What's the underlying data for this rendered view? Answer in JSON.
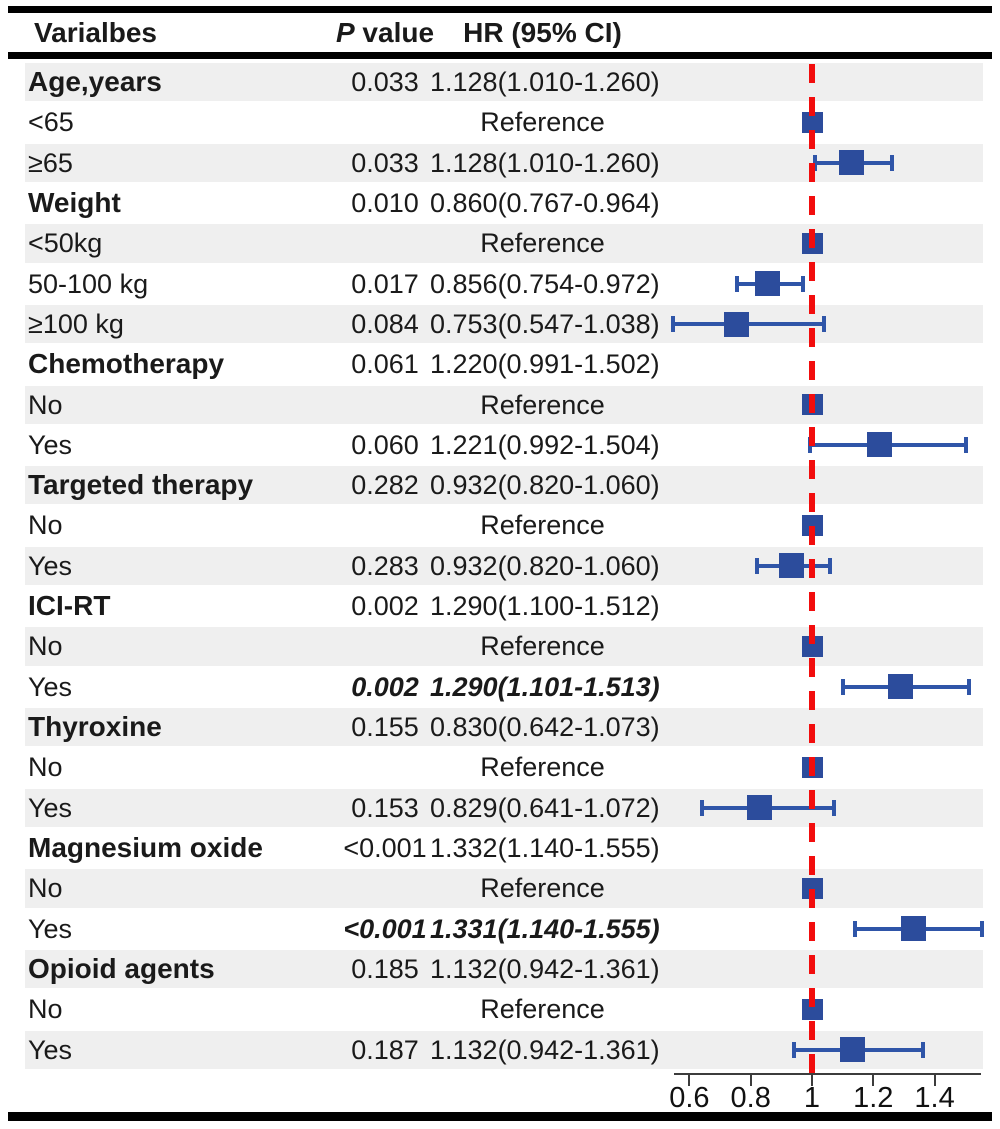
{
  "header": {
    "col_variables": "Varialbes",
    "col_p_italic": "P",
    "col_p_rest": " value",
    "col_hr": "HR (95% CI)"
  },
  "colors": {
    "marker": "#2c4c9c",
    "whisker": "#2f55a8",
    "ref_line_red": "#f20d0d",
    "stripe": "#efefef",
    "rule": "#000000"
  },
  "chart_data": {
    "type": "forest",
    "axis": {
      "ticks": [
        "0.6",
        "0.8",
        "1",
        "1.2",
        "1.4"
      ],
      "tick_values": [
        0.6,
        0.8,
        1.0,
        1.2,
        1.4
      ],
      "min": 0.55,
      "max": 1.55
    },
    "ref_line": 1.0,
    "rows": [
      {
        "label": "Age,years",
        "category": true,
        "p": "0.033",
        "hr": "1.128(1.010-1.260)",
        "emphasis": false,
        "marker": null
      },
      {
        "label": "<65",
        "category": false,
        "p": "",
        "hr": "Reference",
        "emphasis": false,
        "marker": {
          "ref": true
        }
      },
      {
        "label": "≥65",
        "category": false,
        "p": "0.033",
        "hr": "1.128(1.010-1.260)",
        "emphasis": false,
        "marker": {
          "est": 1.128,
          "lo": 1.01,
          "hi": 1.26
        }
      },
      {
        "label": "Weight",
        "category": true,
        "p": "0.010",
        "hr": "0.860(0.767-0.964)",
        "emphasis": false,
        "marker": null
      },
      {
        "label": "<50kg",
        "category": false,
        "p": "",
        "hr": "Reference",
        "emphasis": false,
        "marker": {
          "ref": true
        }
      },
      {
        "label": "50-100 kg",
        "category": false,
        "p": "0.017",
        "hr": "0.856(0.754-0.972)",
        "emphasis": false,
        "marker": {
          "est": 0.856,
          "lo": 0.754,
          "hi": 0.972
        }
      },
      {
        "label": "≥100 kg",
        "category": false,
        "p": "0.084",
        "hr": "0.753(0.547-1.038)",
        "emphasis": false,
        "marker": {
          "est": 0.753,
          "lo": 0.547,
          "hi": 1.038
        }
      },
      {
        "label": "Chemotherapy",
        "category": true,
        "p": "0.061",
        "hr": "1.220(0.991-1.502)",
        "emphasis": false,
        "marker": null
      },
      {
        "label": "No",
        "category": false,
        "p": "",
        "hr": "Reference",
        "emphasis": false,
        "marker": {
          "ref": true
        }
      },
      {
        "label": "Yes",
        "category": false,
        "p": "0.060",
        "hr": "1.221(0.992-1.504)",
        "emphasis": false,
        "marker": {
          "est": 1.221,
          "lo": 0.992,
          "hi": 1.504
        }
      },
      {
        "label": "Targeted therapy",
        "category": true,
        "p": "0.282",
        "hr": "0.932(0.820-1.060)",
        "emphasis": false,
        "marker": null
      },
      {
        "label": "No",
        "category": false,
        "p": "",
        "hr": "Reference",
        "emphasis": false,
        "marker": {
          "ref": true
        }
      },
      {
        "label": "Yes",
        "category": false,
        "p": "0.283",
        "hr": "0.932(0.820-1.060)",
        "emphasis": false,
        "marker": {
          "est": 0.932,
          "lo": 0.82,
          "hi": 1.06
        }
      },
      {
        "label": "ICI-RT",
        "category": true,
        "p": "0.002",
        "hr": "1.290(1.100-1.512)",
        "emphasis": false,
        "marker": null
      },
      {
        "label": "No",
        "category": false,
        "p": "",
        "hr": "Reference",
        "emphasis": false,
        "marker": {
          "ref": true
        }
      },
      {
        "label": "Yes",
        "category": false,
        "p": "0.002",
        "hr": "1.290(1.101-1.513)",
        "emphasis": true,
        "marker": {
          "est": 1.29,
          "lo": 1.101,
          "hi": 1.513
        }
      },
      {
        "label": "Thyroxine",
        "category": true,
        "p": "0.155",
        "hr": "0.830(0.642-1.073)",
        "emphasis": false,
        "marker": null
      },
      {
        "label": "No",
        "category": false,
        "p": "",
        "hr": "Reference",
        "emphasis": false,
        "marker": {
          "ref": true
        }
      },
      {
        "label": "Yes",
        "category": false,
        "p": "0.153",
        "hr": "0.829(0.641-1.072)",
        "emphasis": false,
        "marker": {
          "est": 0.829,
          "lo": 0.641,
          "hi": 1.072
        }
      },
      {
        "label": "Magnesium oxide",
        "category": true,
        "p": "<0.001",
        "hr": "1.332(1.140-1.555)",
        "emphasis": false,
        "marker": null
      },
      {
        "label": "No",
        "category": false,
        "p": "",
        "hr": "Reference",
        "emphasis": false,
        "marker": {
          "ref": true
        }
      },
      {
        "label": "Yes",
        "category": false,
        "p": "<0.001",
        "hr": "1.331(1.140-1.555)",
        "emphasis": true,
        "marker": {
          "est": 1.331,
          "lo": 1.14,
          "hi": 1.555
        }
      },
      {
        "label": "Opioid agents",
        "category": true,
        "p": "0.185",
        "hr": "1.132(0.942-1.361)",
        "emphasis": false,
        "marker": null
      },
      {
        "label": "No",
        "category": false,
        "p": "",
        "hr": "Reference",
        "emphasis": false,
        "marker": {
          "ref": true
        }
      },
      {
        "label": "Yes",
        "category": false,
        "p": "0.187",
        "hr": "1.132(0.942-1.361)",
        "emphasis": false,
        "marker": {
          "est": 1.132,
          "lo": 0.942,
          "hi": 1.361
        }
      }
    ]
  }
}
